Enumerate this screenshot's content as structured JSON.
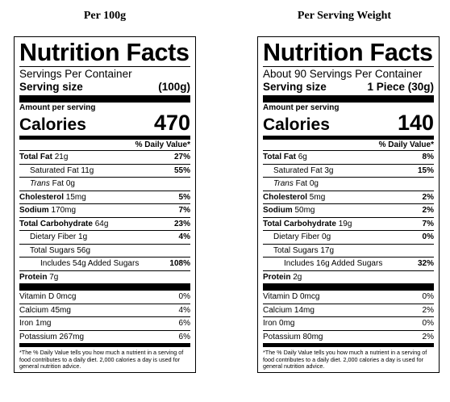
{
  "headers": {
    "left": "Per 100g",
    "right": "Per Serving Weight"
  },
  "labels": [
    {
      "title": "Nutrition Facts",
      "servings": "Servings Per Container",
      "serving_size_label": "Serving size",
      "serving_size_value": "(100g)",
      "amount_per_serving": "Amount per serving",
      "calories_label": "Calories",
      "calories_value": "470",
      "dv_header": "% Daily Value*",
      "rows": [
        {
          "name": "Total Fat",
          "amount": "21g",
          "dv": "27%"
        },
        {
          "name": "Saturated Fat",
          "amount": "11g",
          "dv": "55%"
        },
        {
          "name": "Trans",
          "amount": "Fat 0g",
          "dv": ""
        },
        {
          "name": "Cholesterol",
          "amount": "15mg",
          "dv": "5%"
        },
        {
          "name": "Sodium",
          "amount": "170mg",
          "dv": "7%"
        },
        {
          "name": "Total Carbohydrate",
          "amount": "64g",
          "dv": "23%"
        },
        {
          "name": "Dietary Fiber",
          "amount": "1g",
          "dv": "4%"
        },
        {
          "name": "Total Sugars",
          "amount": "56g",
          "dv": ""
        },
        {
          "name": "Includes 54g Added Sugars",
          "amount": "",
          "dv": "108%"
        },
        {
          "name": "Protein",
          "amount": "7g",
          "dv": ""
        }
      ],
      "vitamins": [
        {
          "name": "Vitamin D 0mcg",
          "dv": "0%"
        },
        {
          "name": "Calcium 45mg",
          "dv": "4%"
        },
        {
          "name": "Iron 1mg",
          "dv": "6%"
        },
        {
          "name": "Potassium 267mg",
          "dv": "6%"
        }
      ],
      "footnote": "*The % Daily Value tells you how much a nutrient in a serving of food contributes to a daily diet. 2,000 calories a day is used for general nutrition advice."
    },
    {
      "title": "Nutrition Facts",
      "servings": "About 90 Servings Per Container",
      "serving_size_label": "Serving size",
      "serving_size_value": "1 Piece (30g)",
      "amount_per_serving": "Amount per serving",
      "calories_label": "Calories",
      "calories_value": "140",
      "dv_header": "% Daily Value*",
      "rows": [
        {
          "name": "Total Fat",
          "amount": "6g",
          "dv": "8%"
        },
        {
          "name": "Saturated Fat",
          "amount": "3g",
          "dv": "15%"
        },
        {
          "name": "Trans",
          "amount": "Fat 0g",
          "dv": ""
        },
        {
          "name": "Cholesterol",
          "amount": "5mg",
          "dv": "2%"
        },
        {
          "name": "Sodium",
          "amount": "50mg",
          "dv": "2%"
        },
        {
          "name": "Total Carbohydrate",
          "amount": "19g",
          "dv": "7%"
        },
        {
          "name": "Dietary Fiber",
          "amount": "0g",
          "dv": "0%"
        },
        {
          "name": "Total Sugars",
          "amount": "17g",
          "dv": ""
        },
        {
          "name": "Includes 16g Added Sugars",
          "amount": "",
          "dv": "32%"
        },
        {
          "name": "Protein",
          "amount": "2g",
          "dv": ""
        }
      ],
      "vitamins": [
        {
          "name": "Vitamin D 0mcg",
          "dv": "0%"
        },
        {
          "name": "Calcium 14mg",
          "dv": "2%"
        },
        {
          "name": "Iron 0mg",
          "dv": "0%"
        },
        {
          "name": "Potassium 80mg",
          "dv": "2%"
        }
      ],
      "footnote": "*The % Daily Value tells you how much a nutrient in a serving of food contributes to a daily diet. 2,000 calories a day is used for general nutrition advice."
    }
  ]
}
